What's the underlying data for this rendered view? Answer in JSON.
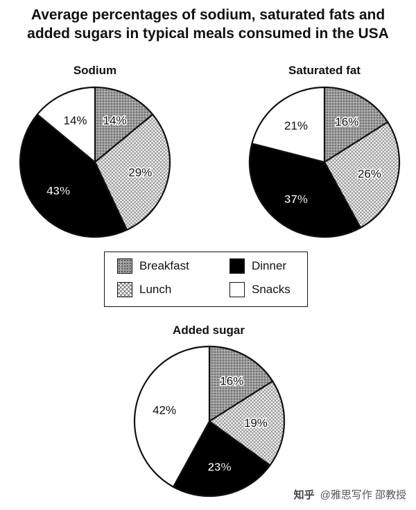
{
  "title_line1": "Average percentages of sodium, saturated fats and",
  "title_line2": "added sugars in typical meals consumed in the USA",
  "colors": {
    "breakfast": "#9a9a9a",
    "lunch": "#f2f2f2",
    "dinner": "#000000",
    "snacks": "#ffffff"
  },
  "legend": [
    {
      "key": "breakfast",
      "label": "Breakfast"
    },
    {
      "key": "dinner",
      "label": "Dinner"
    },
    {
      "key": "lunch",
      "label": "Lunch"
    },
    {
      "key": "snacks",
      "label": "Snacks"
    }
  ],
  "chart_data": [
    {
      "type": "pie",
      "title": "Sodium",
      "slices": [
        {
          "category": "Breakfast",
          "value": 14,
          "label": "14%"
        },
        {
          "category": "Lunch",
          "value": 29,
          "label": "29%"
        },
        {
          "category": "Dinner",
          "value": 43,
          "label": "43%"
        },
        {
          "category": "Snacks",
          "value": 14,
          "label": "14%"
        }
      ]
    },
    {
      "type": "pie",
      "title": "Saturated fat",
      "slices": [
        {
          "category": "Breakfast",
          "value": 16,
          "label": "16%"
        },
        {
          "category": "Lunch",
          "value": 26,
          "label": "26%"
        },
        {
          "category": "Dinner",
          "value": 37,
          "label": "37%"
        },
        {
          "category": "Snacks",
          "value": 21,
          "label": "21%"
        }
      ]
    },
    {
      "type": "pie",
      "title": "Added sugar",
      "slices": [
        {
          "category": "Breakfast",
          "value": 16,
          "label": "16%"
        },
        {
          "category": "Lunch",
          "value": 19,
          "label": "19%"
        },
        {
          "category": "Dinner",
          "value": 23,
          "label": "23%"
        },
        {
          "category": "Snacks",
          "value": 42,
          "label": "42%"
        }
      ]
    }
  ],
  "watermark": {
    "logo": "知乎",
    "text": "@雅思写作 邵教授"
  }
}
